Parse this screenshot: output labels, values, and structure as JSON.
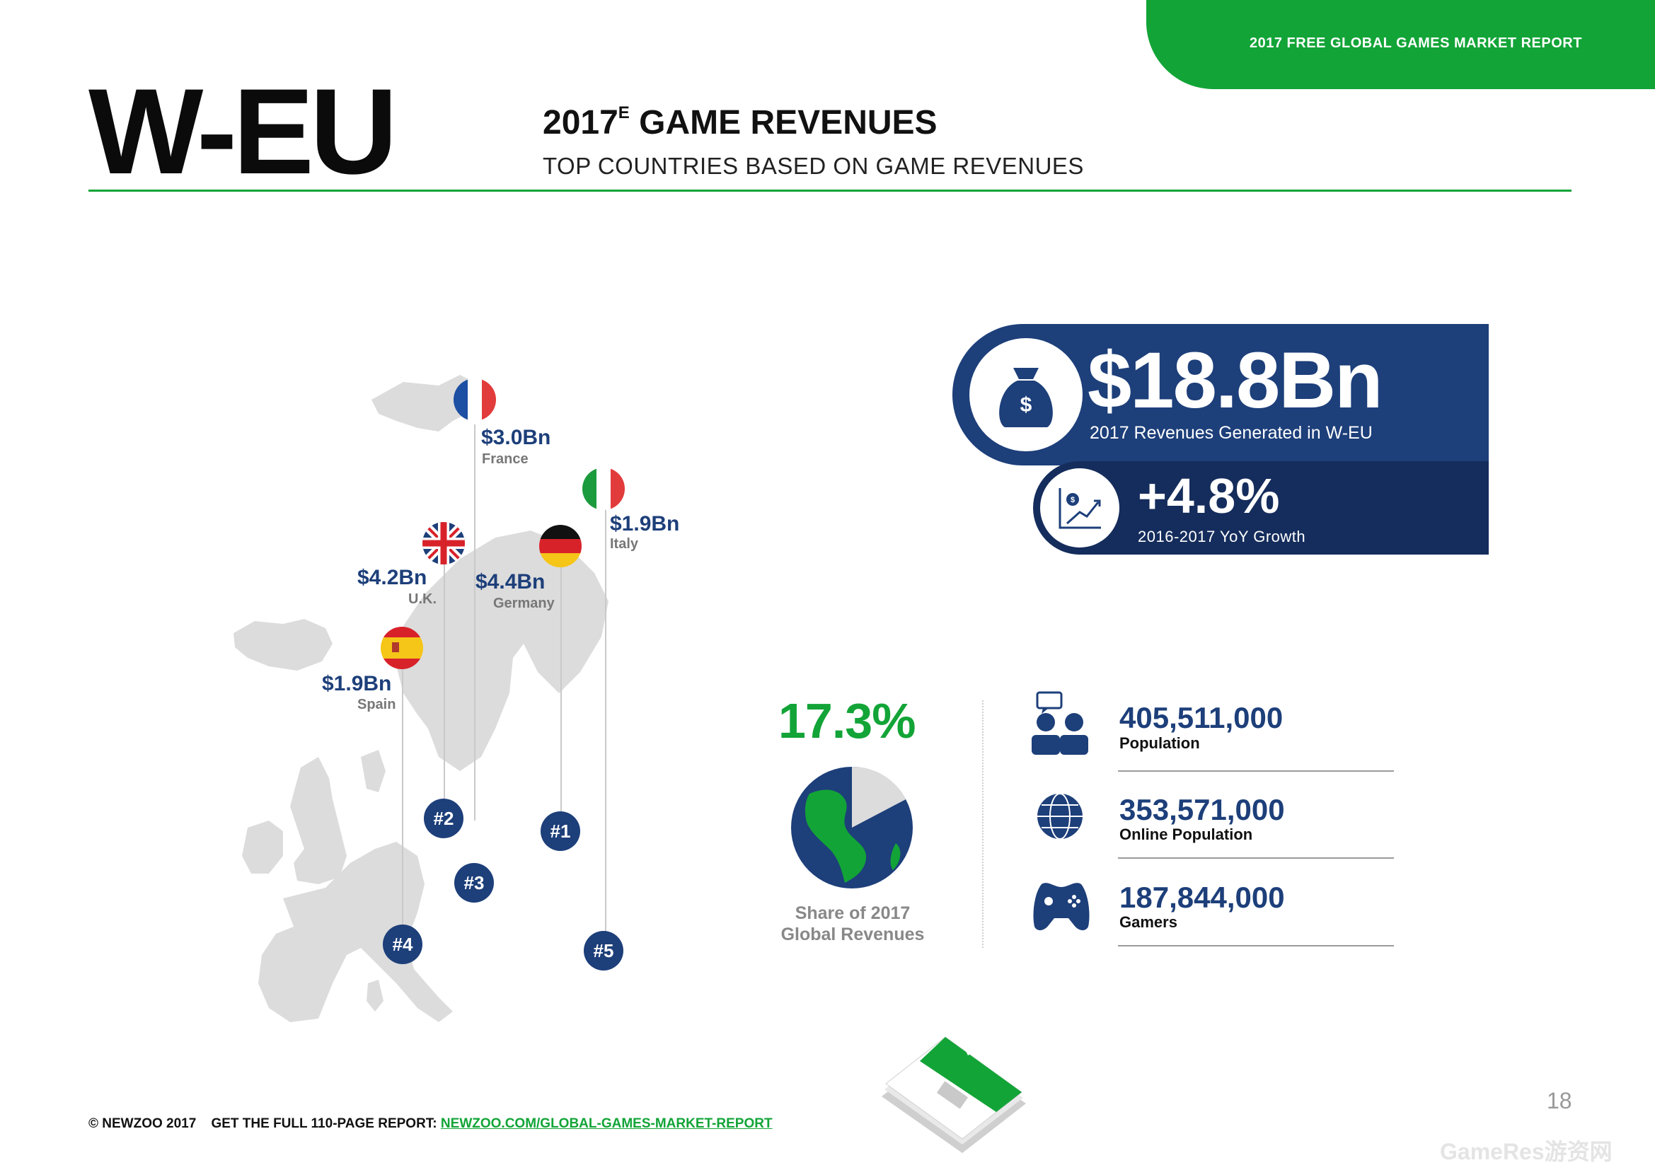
{
  "header": {
    "banner": "2017 FREE GLOBAL GAMES MARKET REPORT",
    "region": "W-EU",
    "title_year": "2017",
    "title_superscript": "E",
    "title_rest": "GAME REVENUES",
    "subtitle": "TOP COUNTRIES BASED ON GAME REVENUES"
  },
  "countries": [
    {
      "value": "$3.0Bn",
      "name": "France",
      "rank": "#3"
    },
    {
      "value": "$1.9Bn",
      "name": "Italy",
      "rank": "#5"
    },
    {
      "value": "$4.2Bn",
      "name": "U.K.",
      "rank": "#2"
    },
    {
      "value": "$4.4Bn",
      "name": "Germany",
      "rank": "#1"
    },
    {
      "value": "$1.9Bn",
      "name": "Spain",
      "rank": "#4"
    }
  ],
  "revenue": {
    "value": "$18.8Bn",
    "label": "2017 Revenues Generated in W-EU",
    "icon": "money-bag-icon"
  },
  "growth": {
    "value": "+4.8%",
    "label": "2016-2017 YoY Growth",
    "icon": "growth-chart-icon"
  },
  "share": {
    "value": "17.3%",
    "fraction": 0.173,
    "label_line1": "Share of 2017",
    "label_line2": "Global Revenues"
  },
  "stats": [
    {
      "value": "405,511,000",
      "label": "Population",
      "icon": "people-icon"
    },
    {
      "value": "353,571,000",
      "label": "Online Population",
      "icon": "globe-icon"
    },
    {
      "value": "187,844,000",
      "label": "Gamers",
      "icon": "gamepad-icon"
    }
  ],
  "footer": {
    "copyright": "© NEWZOO 2017",
    "cta": "GET THE FULL 110-PAGE REPORT:",
    "link": "NEWZOO.COM/GLOBAL-GAMES-MARKET-REPORT",
    "page_number": "18",
    "watermark": "GameRes游资网"
  },
  "colors": {
    "brand_green": "#12a437",
    "navy": "#1d3f7a",
    "dark_navy": "#152d5c",
    "map_gray": "#dcdcdc"
  }
}
